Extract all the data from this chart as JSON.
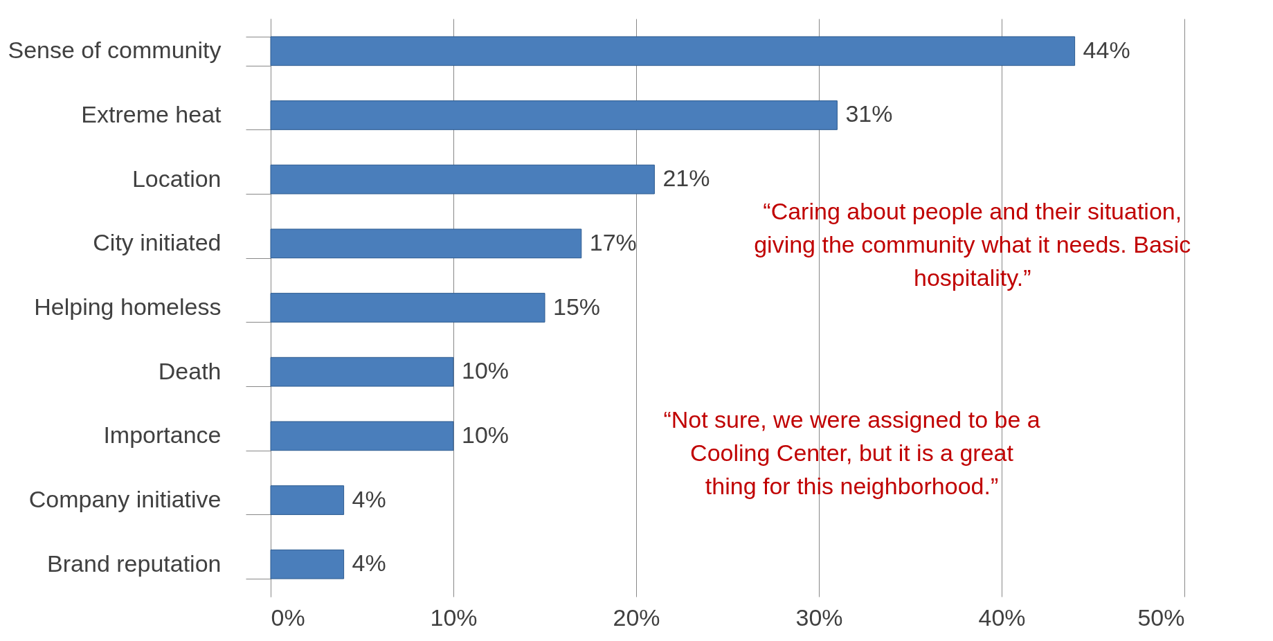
{
  "chart_data": {
    "type": "bar",
    "orientation": "horizontal",
    "categories": [
      "Sense of community",
      "Extreme heat",
      "Location",
      "City initiated",
      "Helping homeless",
      "Death",
      "Importance",
      "Company initiative",
      "Brand reputation"
    ],
    "values": [
      44,
      31,
      21,
      17,
      15,
      10,
      10,
      4,
      4
    ],
    "value_labels": [
      "44%",
      "31%",
      "21%",
      "17%",
      "15%",
      "10%",
      "10%",
      "4%",
      "4%"
    ],
    "color": "#4a7ebb",
    "xlim": [
      0,
      50
    ],
    "xticks": [
      {
        "value": 0,
        "label": "0%"
      },
      {
        "value": 10,
        "label": "10%"
      },
      {
        "value": 20,
        "label": "20%"
      },
      {
        "value": 30,
        "label": "30%"
      },
      {
        "value": 40,
        "label": "40%"
      },
      {
        "value": 50,
        "label": "50%"
      }
    ],
    "grid": "x",
    "annotations": [
      "“Caring about people and their situation, giving the community what it needs. Basic hospitality.”",
      "“Not sure, we were assigned to be a Cooling Center, but it is a great thing for this neighborhood.”"
    ]
  }
}
